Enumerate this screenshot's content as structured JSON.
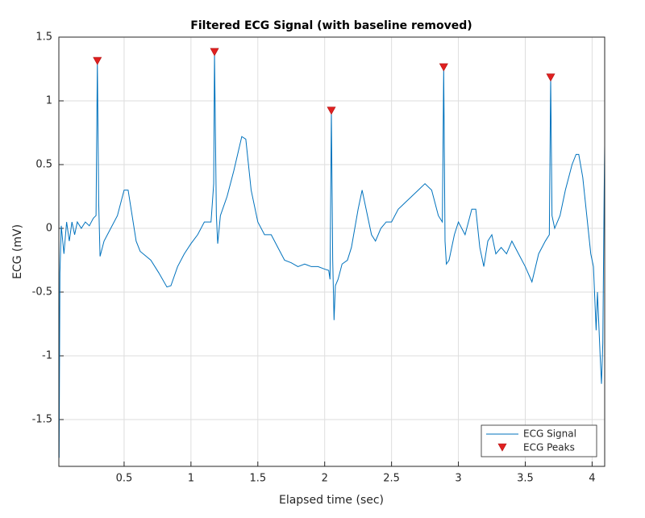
{
  "chart_data": {
    "type": "line",
    "title": "Filtered ECG Signal (with baseline removed)",
    "xlabel": "Elapsed time (sec)",
    "ylabel": "ECG (mV)",
    "xlim": [
      0.012,
      4.094
    ],
    "ylim": [
      -1.867,
      1.5
    ],
    "xticks": [
      0.5,
      1,
      1.5,
      2,
      2.5,
      3,
      3.5,
      4
    ],
    "yticks": [
      -1.5,
      -1,
      -0.5,
      0,
      0.5,
      1,
      1.5
    ],
    "grid": true,
    "legend": "southeast",
    "series": [
      {
        "name": "ECG Signal",
        "color": "#0072bd",
        "marker": "none",
        "x": [
          0.012,
          0.014,
          0.02,
          0.03,
          0.05,
          0.07,
          0.09,
          0.11,
          0.13,
          0.15,
          0.18,
          0.21,
          0.24,
          0.27,
          0.29,
          0.3,
          0.31,
          0.32,
          0.35,
          0.4,
          0.45,
          0.5,
          0.53,
          0.56,
          0.59,
          0.62,
          0.7,
          0.76,
          0.82,
          0.85,
          0.9,
          0.95,
          1.0,
          1.05,
          1.1,
          1.15,
          1.17,
          1.176,
          1.19,
          1.2,
          1.22,
          1.27,
          1.32,
          1.38,
          1.41,
          1.45,
          1.5,
          1.55,
          1.6,
          1.65,
          1.7,
          1.75,
          1.8,
          1.85,
          1.9,
          1.95,
          2.0,
          2.03,
          2.04,
          2.05,
          2.06,
          2.07,
          2.08,
          2.1,
          2.13,
          2.17,
          2.2,
          2.25,
          2.28,
          2.32,
          2.35,
          2.38,
          2.42,
          2.46,
          2.5,
          2.55,
          2.6,
          2.65,
          2.7,
          2.75,
          2.8,
          2.85,
          2.88,
          2.89,
          2.9,
          2.91,
          2.93,
          2.97,
          3.0,
          3.05,
          3.1,
          3.13,
          3.16,
          3.19,
          3.22,
          3.25,
          3.28,
          3.32,
          3.36,
          3.4,
          3.45,
          3.5,
          3.55,
          3.6,
          3.65,
          3.68,
          3.69,
          3.7,
          3.72,
          3.76,
          3.8,
          3.85,
          3.88,
          3.9,
          3.93,
          3.96,
          3.99,
          4.01,
          4.03,
          4.04,
          4.06,
          4.07,
          4.08,
          4.09,
          4.094
        ],
        "values": [
          0.25,
          -1.8,
          -0.35,
          0.02,
          -0.2,
          0.05,
          -0.1,
          0.05,
          -0.05,
          0.05,
          0.0,
          0.05,
          0.02,
          0.08,
          0.1,
          1.31,
          0.2,
          -0.22,
          -0.1,
          0.0,
          0.1,
          0.3,
          0.3,
          0.1,
          -0.1,
          -0.18,
          -0.25,
          -0.35,
          -0.46,
          -0.45,
          -0.3,
          -0.2,
          -0.12,
          -0.05,
          0.05,
          0.05,
          0.35,
          1.38,
          0.1,
          -0.12,
          0.1,
          0.25,
          0.45,
          0.72,
          0.7,
          0.3,
          0.05,
          -0.05,
          -0.05,
          -0.15,
          -0.25,
          -0.27,
          -0.3,
          -0.28,
          -0.3,
          -0.3,
          -0.32,
          -0.33,
          -0.4,
          0.92,
          -0.25,
          -0.72,
          -0.45,
          -0.4,
          -0.28,
          -0.25,
          -0.15,
          0.15,
          0.3,
          0.1,
          -0.05,
          -0.1,
          0.0,
          0.05,
          0.05,
          0.15,
          0.2,
          0.25,
          0.3,
          0.35,
          0.3,
          0.1,
          0.05,
          1.26,
          -0.1,
          -0.28,
          -0.25,
          -0.05,
          0.05,
          -0.05,
          0.15,
          0.15,
          -0.15,
          -0.3,
          -0.1,
          -0.05,
          -0.2,
          -0.15,
          -0.2,
          -0.1,
          -0.2,
          -0.3,
          -0.42,
          -0.2,
          -0.1,
          -0.05,
          1.18,
          0.1,
          0.0,
          0.1,
          0.3,
          0.5,
          0.58,
          0.58,
          0.4,
          0.1,
          -0.2,
          -0.3,
          -0.8,
          -0.5,
          -1.0,
          -1.22,
          -0.9,
          0.28,
          0.65
        ]
      },
      {
        "name": "ECG Peaks",
        "color": "#e02020",
        "marker": "triangle-down",
        "x": [
          0.3,
          1.176,
          2.05,
          2.89,
          3.69
        ],
        "values": [
          1.31,
          1.38,
          0.92,
          1.26,
          1.18
        ]
      }
    ]
  }
}
